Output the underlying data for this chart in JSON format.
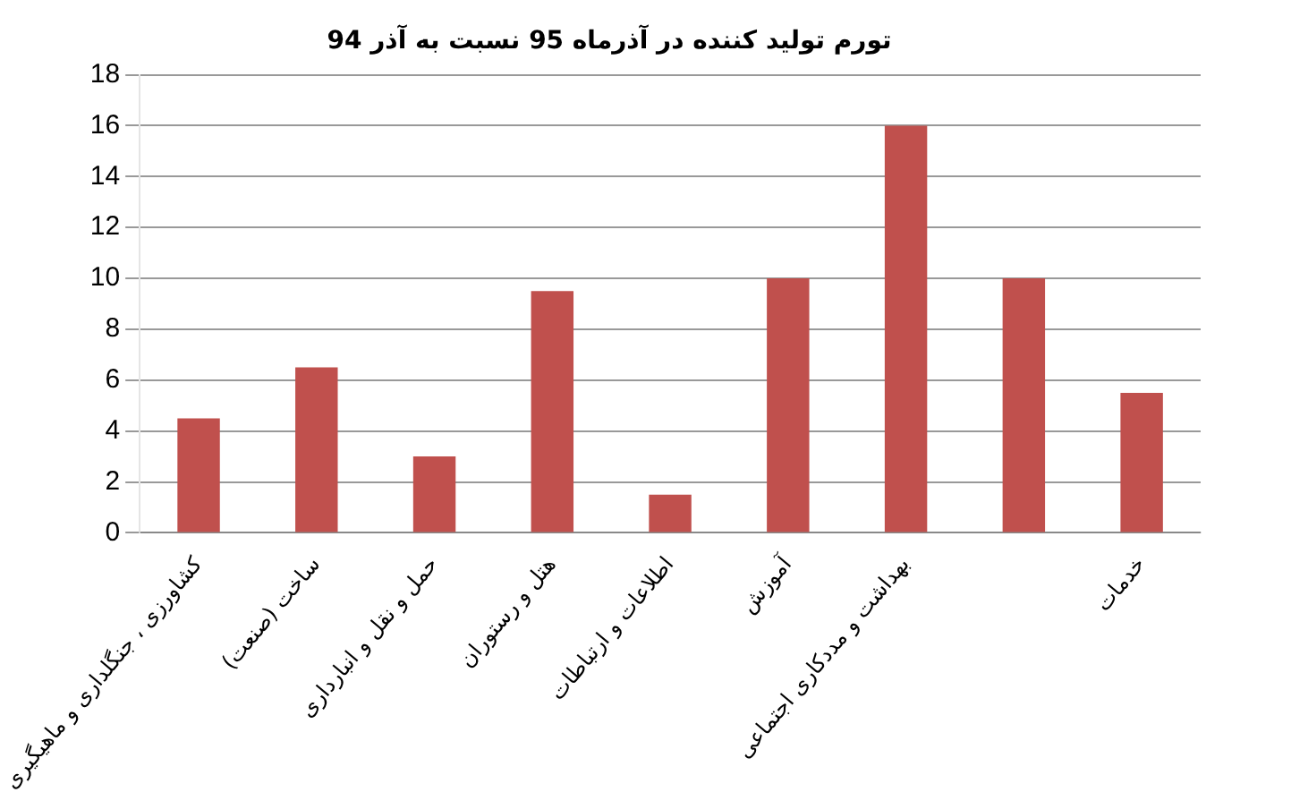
{
  "chart_data": {
    "type": "bar",
    "title": "تورم تولید کننده در آذرماه 95 نسبت به آذر 94",
    "categories": [
      "کشاورزی ، جنگلداری و ماهیگیری",
      "ساخت (صنعت)",
      "حمل و نقل و انبارداری",
      "هتل و رستوران",
      "اطلاعات و ارتباطات",
      "آموزش",
      "بهداشت و مددکاری اجتماعی",
      null,
      "خدمات"
    ],
    "values": [
      4.5,
      6.5,
      3,
      9.5,
      1.5,
      10,
      16,
      10,
      5.5
    ],
    "color": "#c0504d",
    "ylim": [
      0,
      18
    ],
    "yticks": [
      0,
      2,
      4,
      6,
      8,
      10,
      12,
      14,
      16,
      18
    ],
    "grid": "y"
  }
}
